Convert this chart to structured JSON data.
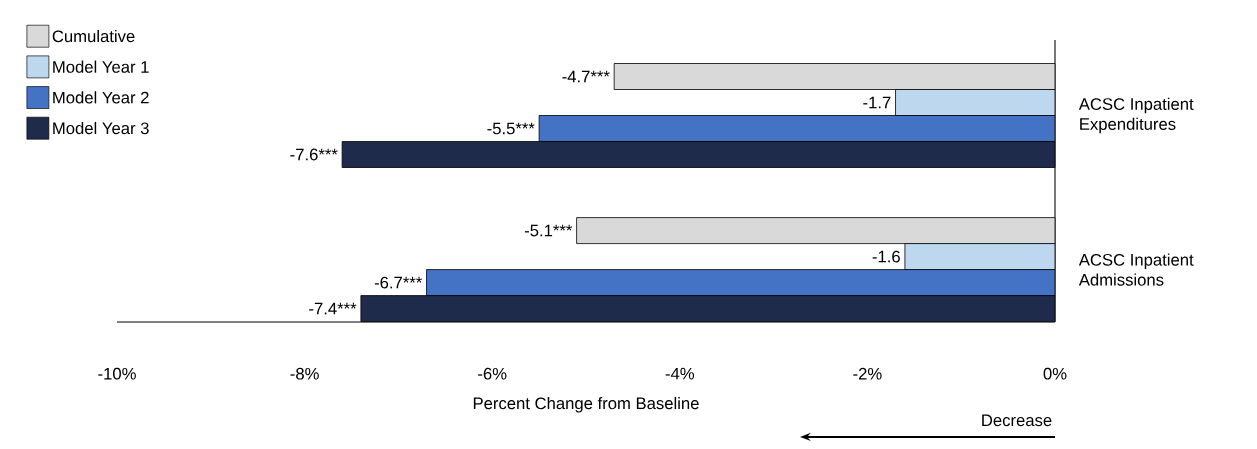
{
  "chart_data": {
    "type": "bar",
    "orientation": "horizontal",
    "xlabel": "Percent Change from Baseline",
    "categories": [
      "ACSC Inpatient Expenditures",
      "ACSC Inpatient Admissions"
    ],
    "series": [
      {
        "name": "Cumulative",
        "color": "#d9d9d9",
        "values": [
          -4.7,
          -5.1
        ],
        "value_labels": [
          "-4.7***",
          "-5.1***"
        ]
      },
      {
        "name": "Model Year 1",
        "color": "#bdd7ee",
        "values": [
          -1.7,
          -1.6
        ],
        "value_labels": [
          "-1.7",
          "-1.6"
        ]
      },
      {
        "name": "Model Year 2",
        "color": "#4472c4",
        "values": [
          -5.5,
          -6.7
        ],
        "value_labels": [
          "-5.5***",
          "-6.7***"
        ]
      },
      {
        "name": "Model Year 3",
        "color": "#1f2b4b",
        "values": [
          -7.6,
          -7.4
        ],
        "value_labels": [
          "-7.6***",
          "-7.4***"
        ]
      }
    ],
    "xlim": [
      -10,
      0
    ],
    "xticks": [
      {
        "value": -10,
        "label": "-10%"
      },
      {
        "value": -8,
        "label": "-8%"
      },
      {
        "value": -6,
        "label": "-6%"
      },
      {
        "value": -4,
        "label": "-4%"
      },
      {
        "value": -2,
        "label": "-2%"
      },
      {
        "value": 0,
        "label": "0%"
      }
    ],
    "legend": "top left",
    "grid": false,
    "annotations": [
      "Decrease"
    ]
  }
}
